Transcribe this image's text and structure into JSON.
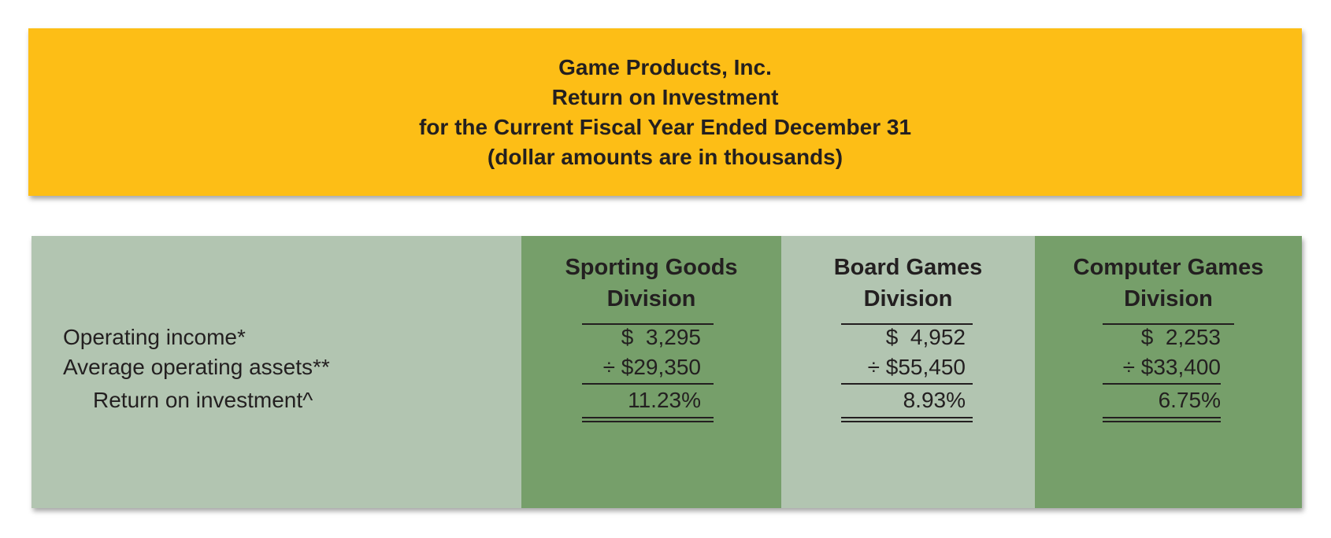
{
  "header": {
    "line1": "Game Products, Inc.",
    "line2": "Return on Investment",
    "line3": "for the Current Fiscal Year Ended December 31",
    "line4": "(dollar amounts are in thousands)"
  },
  "rows": {
    "operating_income": "Operating income*",
    "average_operating_assets": "Average operating assets**",
    "return_on_investment": "Return on investment^"
  },
  "divisions": [
    {
      "name_line1": "Sporting Goods",
      "name_line2": "Division",
      "operating_income": "$  3,295",
      "average_operating_assets": "÷ $29,350",
      "return_on_investment": "11.23%"
    },
    {
      "name_line1": "Board Games",
      "name_line2": "Division",
      "operating_income": "$  4,952",
      "average_operating_assets": "÷ $55,450",
      "return_on_investment": "8.93%"
    },
    {
      "name_line1": "Computer Games",
      "name_line2": "Division",
      "operating_income": "$  2,253",
      "average_operating_assets": "÷ $33,400",
      "return_on_investment": "6.75%"
    }
  ],
  "colors": {
    "header_bg": "#fdbe16",
    "table_light": "#b2c5b1",
    "table_dark": "#769f6a",
    "text": "#231f20"
  }
}
